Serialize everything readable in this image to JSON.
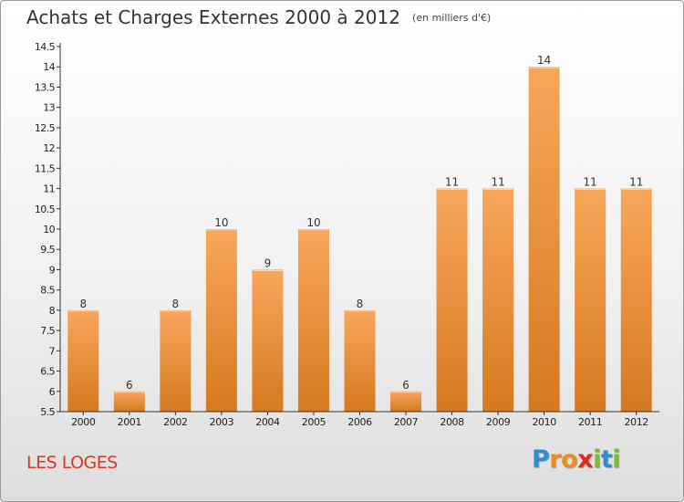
{
  "header": {
    "title": "Achats et Charges Externes 2000 à 2012",
    "subtitle": "(en milliers d'€)"
  },
  "place_name": "LES LOGES",
  "logo": {
    "text": "Proxiti",
    "letters": [
      {
        "ch": "P",
        "color": "#2c8fd0"
      },
      {
        "ch": "r",
        "color": "#f08a1e"
      },
      {
        "ch": "o",
        "color": "#f08a1e"
      },
      {
        "ch": "x",
        "color": "#e3261a"
      },
      {
        "ch": "i",
        "color": "#7cbb2b"
      },
      {
        "ch": "t",
        "color": "#2c8fd0"
      },
      {
        "ch": "i",
        "color": "#7cbb2b"
      }
    ]
  },
  "colors": {
    "bar_light": "#f9a65a",
    "bar_dark": "#d5791f",
    "axis": "#333333",
    "title": "#333333",
    "place": "#d63a24"
  },
  "chart_data": {
    "type": "bar",
    "title": "Achats et Charges Externes 2000 à 2012",
    "subtitle": "(en milliers d'€)",
    "xlabel": "",
    "ylabel": "",
    "categories": [
      "2000",
      "2001",
      "2002",
      "2003",
      "2004",
      "2005",
      "2006",
      "2007",
      "2008",
      "2009",
      "2010",
      "2011",
      "2012"
    ],
    "values": [
      8,
      6,
      8,
      10,
      9,
      10,
      8,
      6,
      11,
      11,
      14,
      11,
      11
    ],
    "data_labels": [
      "8",
      "6",
      "8",
      "10",
      "9",
      "10",
      "8",
      "6",
      "11",
      "11",
      "14",
      "11",
      "11"
    ],
    "ylim": [
      5.5,
      14.5
    ],
    "yticks": [
      "5.5",
      "6",
      "6.5",
      "7",
      "7.5",
      "8",
      "8.5",
      "9",
      "9.5",
      "10",
      "10.5",
      "11",
      "11.5",
      "12",
      "12.5",
      "13",
      "13.5",
      "14",
      "14.5"
    ],
    "grid": false,
    "legend": "none"
  }
}
